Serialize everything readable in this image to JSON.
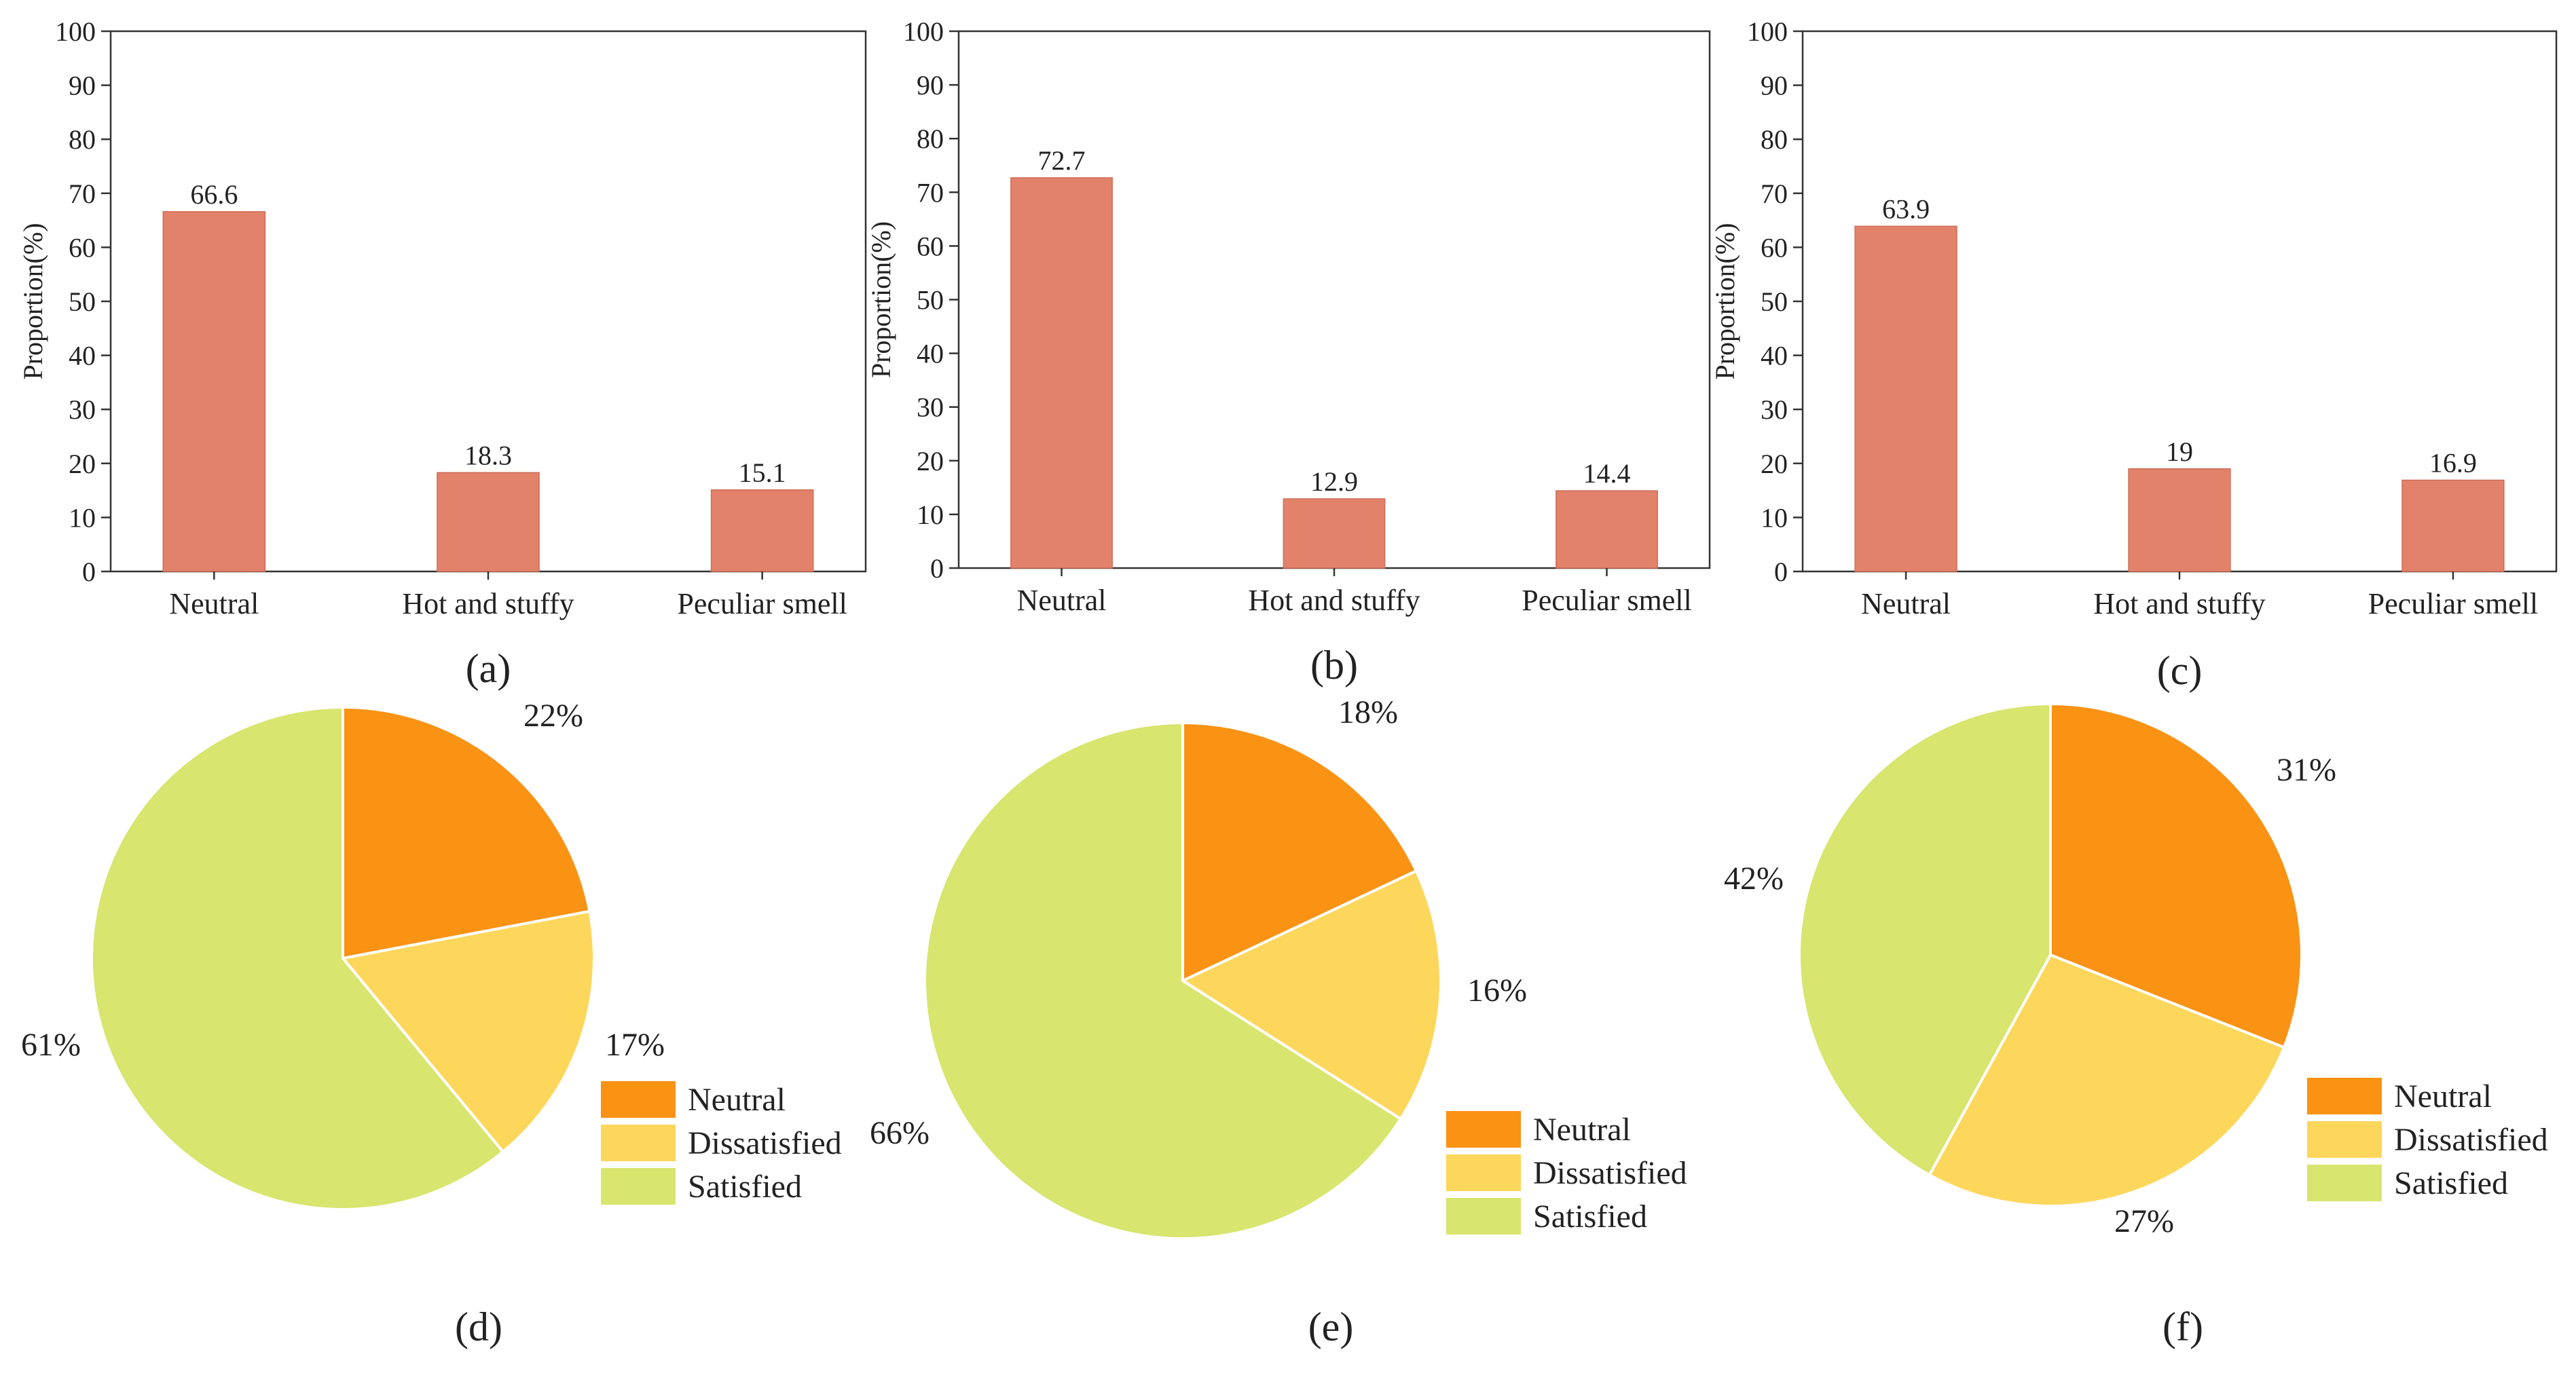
{
  "colors": {
    "bar": "#E2826A",
    "neutral": "#FA9214",
    "dissatisfied": "#FDD75C",
    "satisfied": "#D8E56E"
  },
  "chart_data": [
    {
      "type": "bar",
      "panel_label": "(a)",
      "categories": [
        "Neutral",
        "Hot and stuffy",
        "Peculiar smell"
      ],
      "values": [
        66.6,
        18.3,
        15.1
      ],
      "value_labels": [
        "66.6",
        "18.3",
        "15.1"
      ],
      "title": "",
      "xlabel": "",
      "ylabel": "Proportion(%)",
      "ylim": [
        0,
        100
      ],
      "yticks": [
        0,
        10,
        20,
        30,
        40,
        50,
        60,
        70,
        80,
        90,
        100
      ],
      "grid": false
    },
    {
      "type": "bar",
      "panel_label": "(b)",
      "categories": [
        "Neutral",
        "Hot and stuffy",
        "Peculiar smell"
      ],
      "values": [
        72.7,
        12.9,
        14.4
      ],
      "value_labels": [
        "72.7",
        "12.9",
        "14.4"
      ],
      "title": "",
      "xlabel": "",
      "ylabel": "Proportion(%)",
      "ylim": [
        0,
        100
      ],
      "yticks": [
        0,
        10,
        20,
        30,
        40,
        50,
        60,
        70,
        80,
        90,
        100
      ],
      "grid": false
    },
    {
      "type": "bar",
      "panel_label": "(c)",
      "categories": [
        "Neutral",
        "Hot and stuffy",
        "Peculiar smell"
      ],
      "values": [
        63.9,
        19,
        16.9
      ],
      "value_labels": [
        "63.9",
        "19",
        "16.9"
      ],
      "title": "",
      "xlabel": "",
      "ylabel": "Proportion(%)",
      "ylim": [
        0,
        100
      ],
      "yticks": [
        0,
        10,
        20,
        30,
        40,
        50,
        60,
        70,
        80,
        90,
        100
      ],
      "grid": false
    },
    {
      "type": "pie",
      "panel_label": "(d)",
      "categories": [
        "Neutral",
        "Dissatisfied",
        "Satisfied"
      ],
      "values": [
        22,
        17,
        61
      ],
      "value_labels": [
        "22%",
        "17%",
        "61%"
      ],
      "legend": [
        "Neutral",
        "Dissatisfied",
        "Satisfied"
      ],
      "legend_position": "right"
    },
    {
      "type": "pie",
      "panel_label": "(e)",
      "categories": [
        "Neutral",
        "Dissatisfied",
        "Satisfied"
      ],
      "values": [
        18,
        16,
        66
      ],
      "value_labels": [
        "18%",
        "16%",
        "66%"
      ],
      "legend": [
        "Neutral",
        "Dissatisfied",
        "Satisfied"
      ],
      "legend_position": "right"
    },
    {
      "type": "pie",
      "panel_label": "(f)",
      "categories": [
        "Neutral",
        "Dissatisfied",
        "Satisfied"
      ],
      "values": [
        31,
        27,
        42
      ],
      "value_labels": [
        "31%",
        "27%",
        "42%"
      ],
      "legend": [
        "Neutral",
        "Dissatisfied",
        "Satisfied"
      ],
      "legend_position": "right"
    }
  ]
}
